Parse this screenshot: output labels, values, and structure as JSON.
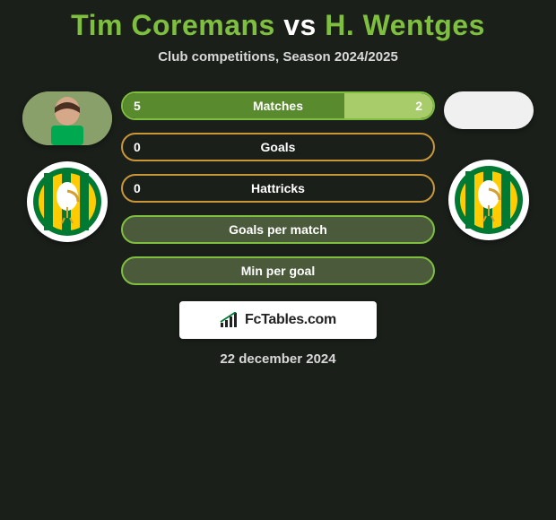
{
  "header": {
    "title_p1": "Tim Coremans",
    "title_vs": "vs",
    "title_p2": "H. Wentges",
    "title_p1_color": "#7fbf3f",
    "title_vs_color": "#ffffff",
    "title_p2_color": "#7fbf3f",
    "subtitle": "Club competitions, Season 2024/2025"
  },
  "players": {
    "left": {
      "name": "Tim Coremans",
      "avatar_bg": "#8aa06a",
      "club_colors": {
        "green": "#007a33",
        "yellow": "#ffcc00"
      }
    },
    "right": {
      "name": "H. Wentges",
      "avatar_bg": "#f0f0f0",
      "club_colors": {
        "green": "#007a33",
        "yellow": "#ffcc00"
      }
    }
  },
  "bars": [
    {
      "label": "Matches",
      "left_val": "5",
      "right_val": "2",
      "left_pct": 71.4,
      "right_pct": 28.6,
      "border_color": "#7fbf3f",
      "left_fill": "#5a8a2e",
      "right_fill": "#a8cc6a",
      "bg": "transparent"
    },
    {
      "label": "Goals",
      "left_val": "0",
      "right_val": "",
      "left_pct": 0,
      "right_pct": 0,
      "border_color": "#c9973a",
      "left_fill": "transparent",
      "right_fill": "transparent",
      "bg": "transparent"
    },
    {
      "label": "Hattricks",
      "left_val": "0",
      "right_val": "",
      "left_pct": 0,
      "right_pct": 0,
      "border_color": "#c9973a",
      "left_fill": "transparent",
      "right_fill": "transparent",
      "bg": "transparent"
    },
    {
      "label": "Goals per match",
      "left_val": "",
      "right_val": "",
      "left_pct": 0,
      "right_pct": 0,
      "border_color": "#7fbf3f",
      "left_fill": "transparent",
      "right_fill": "transparent",
      "bg": "#4a5a3a"
    },
    {
      "label": "Min per goal",
      "left_val": "",
      "right_val": "",
      "left_pct": 0,
      "right_pct": 0,
      "border_color": "#7fbf3f",
      "left_fill": "transparent",
      "right_fill": "transparent",
      "bg": "#4a5a3a"
    }
  ],
  "footer": {
    "brand": "FcTables.com",
    "date": "22 december 2024"
  },
  "colors": {
    "page_bg": "#1a1f1a"
  }
}
